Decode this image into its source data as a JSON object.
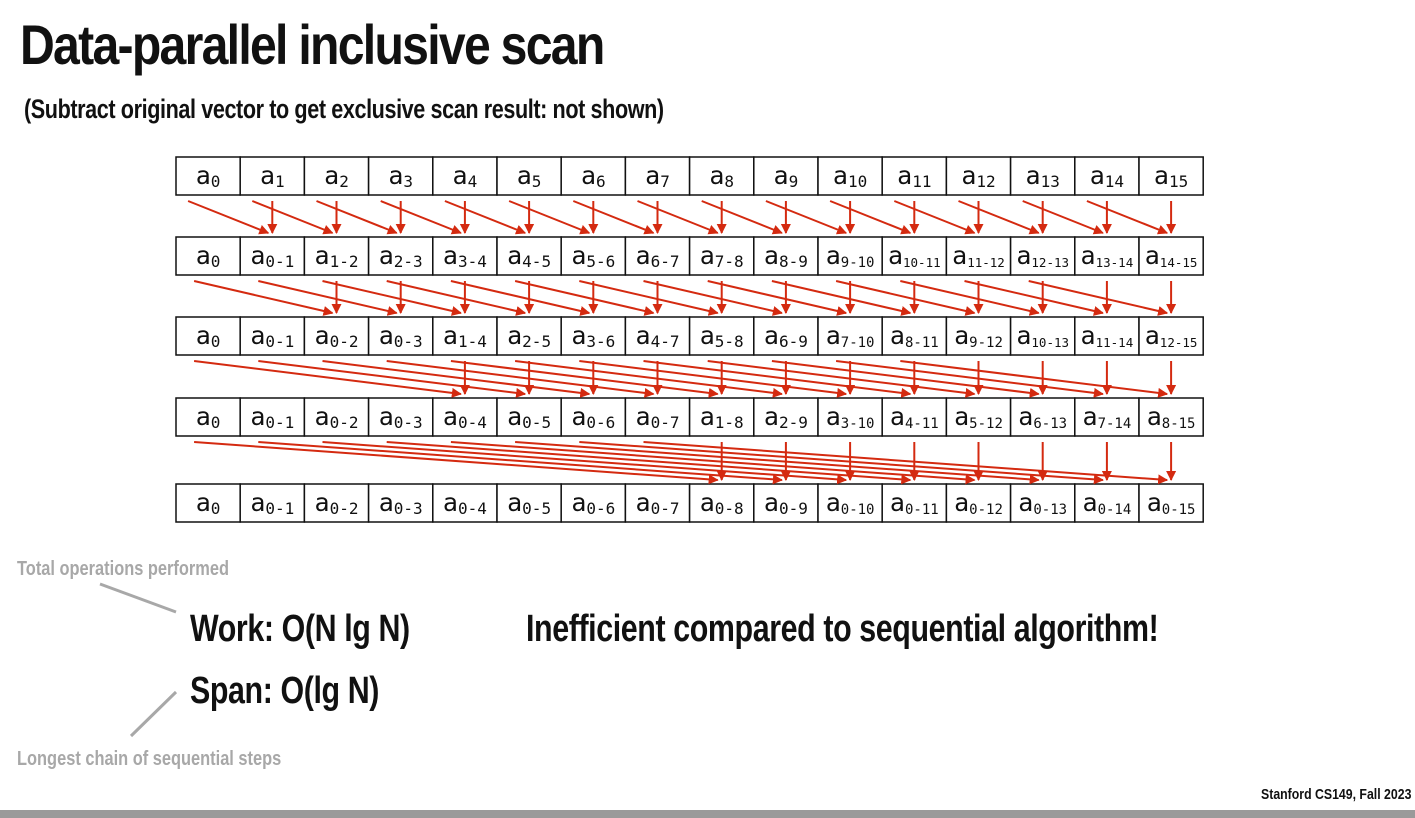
{
  "slide": {
    "title": "Data-parallel inclusive scan",
    "subtitle": "(Subtract original vector to get exclusive scan result: not shown)"
  },
  "scan_rows": [
    {
      "step_offset": null,
      "cells": [
        {
          "base": "a",
          "sub": "0"
        },
        {
          "base": "a",
          "sub": "1"
        },
        {
          "base": "a",
          "sub": "2"
        },
        {
          "base": "a",
          "sub": "3"
        },
        {
          "base": "a",
          "sub": "4"
        },
        {
          "base": "a",
          "sub": "5"
        },
        {
          "base": "a",
          "sub": "6"
        },
        {
          "base": "a",
          "sub": "7"
        },
        {
          "base": "a",
          "sub": "8"
        },
        {
          "base": "a",
          "sub": "9"
        },
        {
          "base": "a",
          "sub": "10"
        },
        {
          "base": "a",
          "sub": "11"
        },
        {
          "base": "a",
          "sub": "12"
        },
        {
          "base": "a",
          "sub": "13"
        },
        {
          "base": "a",
          "sub": "14"
        },
        {
          "base": "a",
          "sub": "15"
        }
      ]
    },
    {
      "step_offset": 1,
      "cells": [
        {
          "base": "a",
          "sub": "0"
        },
        {
          "base": "a",
          "sub": "0-1"
        },
        {
          "base": "a",
          "sub": "1-2"
        },
        {
          "base": "a",
          "sub": "2-3"
        },
        {
          "base": "a",
          "sub": "3-4"
        },
        {
          "base": "a",
          "sub": "4-5"
        },
        {
          "base": "a",
          "sub": "5-6"
        },
        {
          "base": "a",
          "sub": "6-7"
        },
        {
          "base": "a",
          "sub": "7-8"
        },
        {
          "base": "a",
          "sub": "8-9"
        },
        {
          "base": "a",
          "sub": "9-10"
        },
        {
          "base": "a",
          "sub": "10-11"
        },
        {
          "base": "a",
          "sub": "11-12"
        },
        {
          "base": "a",
          "sub": "12-13"
        },
        {
          "base": "a",
          "sub": "13-14"
        },
        {
          "base": "a",
          "sub": "14-15"
        }
      ]
    },
    {
      "step_offset": 2,
      "cells": [
        {
          "base": "a",
          "sub": "0"
        },
        {
          "base": "a",
          "sub": "0-1"
        },
        {
          "base": "a",
          "sub": "0-2"
        },
        {
          "base": "a",
          "sub": "0-3"
        },
        {
          "base": "a",
          "sub": "1-4"
        },
        {
          "base": "a",
          "sub": "2-5"
        },
        {
          "base": "a",
          "sub": "3-6"
        },
        {
          "base": "a",
          "sub": "4-7"
        },
        {
          "base": "a",
          "sub": "5-8"
        },
        {
          "base": "a",
          "sub": "6-9"
        },
        {
          "base": "a",
          "sub": "7-10"
        },
        {
          "base": "a",
          "sub": "8-11"
        },
        {
          "base": "a",
          "sub": "9-12"
        },
        {
          "base": "a",
          "sub": "10-13"
        },
        {
          "base": "a",
          "sub": "11-14"
        },
        {
          "base": "a",
          "sub": "12-15"
        }
      ]
    },
    {
      "step_offset": 4,
      "cells": [
        {
          "base": "a",
          "sub": "0"
        },
        {
          "base": "a",
          "sub": "0-1"
        },
        {
          "base": "a",
          "sub": "0-2"
        },
        {
          "base": "a",
          "sub": "0-3"
        },
        {
          "base": "a",
          "sub": "0-4"
        },
        {
          "base": "a",
          "sub": "0-5"
        },
        {
          "base": "a",
          "sub": "0-6"
        },
        {
          "base": "a",
          "sub": "0-7"
        },
        {
          "base": "a",
          "sub": "1-8"
        },
        {
          "base": "a",
          "sub": "2-9"
        },
        {
          "base": "a",
          "sub": "3-10"
        },
        {
          "base": "a",
          "sub": "4-11"
        },
        {
          "base": "a",
          "sub": "5-12"
        },
        {
          "base": "a",
          "sub": "6-13"
        },
        {
          "base": "a",
          "sub": "7-14"
        },
        {
          "base": "a",
          "sub": "8-15"
        }
      ]
    },
    {
      "step_offset": 8,
      "cells": [
        {
          "base": "a",
          "sub": "0"
        },
        {
          "base": "a",
          "sub": "0-1"
        },
        {
          "base": "a",
          "sub": "0-2"
        },
        {
          "base": "a",
          "sub": "0-3"
        },
        {
          "base": "a",
          "sub": "0-4"
        },
        {
          "base": "a",
          "sub": "0-5"
        },
        {
          "base": "a",
          "sub": "0-6"
        },
        {
          "base": "a",
          "sub": "0-7"
        },
        {
          "base": "a",
          "sub": "0-8"
        },
        {
          "base": "a",
          "sub": "0-9"
        },
        {
          "base": "a",
          "sub": "0-10"
        },
        {
          "base": "a",
          "sub": "0-11"
        },
        {
          "base": "a",
          "sub": "0-12"
        },
        {
          "base": "a",
          "sub": "0-13"
        },
        {
          "base": "a",
          "sub": "0-14"
        },
        {
          "base": "a",
          "sub": "0-15"
        }
      ]
    }
  ],
  "colors": {
    "arrow": "#d42a10",
    "cell_border": "#111111",
    "note_text": "#a8a8a8",
    "footer_bar": "#9a9a9a"
  },
  "annotations": {
    "work_note": "Total operations performed",
    "work": "Work: O(N lg N)",
    "span": "Span: O(lg N)",
    "span_note": "Longest chain of sequential steps",
    "comparison": "Inefficient compared to sequential algorithm!"
  },
  "footer": {
    "credit": "Stanford CS149, Fall 2023"
  }
}
